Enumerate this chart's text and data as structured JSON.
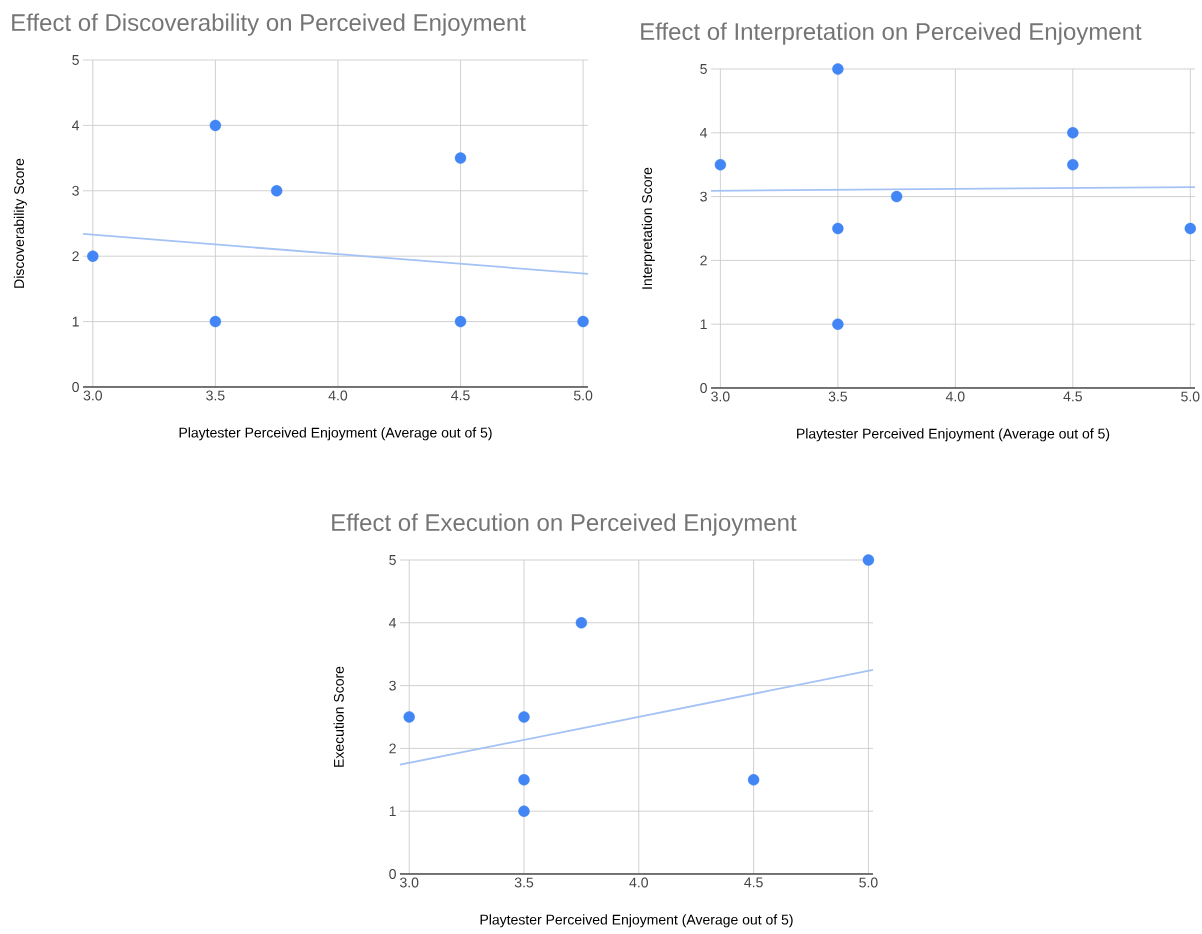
{
  "chart_data": [
    {
      "type": "scatter",
      "title": "Effect of Discoverability on Perceived Enjoyment",
      "xlabel": "Playtester Perceived Enjoyment (Average out of 5)",
      "ylabel": "Discoverability Score",
      "xlim": [
        2.96,
        5.02
      ],
      "ylim": [
        0,
        5
      ],
      "xticks": [
        {
          "value": 3,
          "label": "3.0"
        },
        {
          "value": 3.5,
          "label": "3.5"
        },
        {
          "value": 4,
          "label": "4.0"
        },
        {
          "value": 4.5,
          "label": "4.5"
        },
        {
          "value": 5,
          "label": "5.0"
        }
      ],
      "yticks": [
        0,
        1,
        2,
        3,
        4,
        5
      ],
      "grid": true,
      "series": [
        {
          "color": "#4285f4",
          "marker": "circle",
          "x": [
            3.0,
            3.5,
            3.5,
            3.75,
            4.5,
            4.5,
            5.0
          ],
          "values": [
            2,
            4,
            1,
            3,
            3.5,
            1,
            1
          ]
        },
        {
          "type": "line",
          "color": "#a4c2f4",
          "marker": "none",
          "x": [
            2.96,
            5.02
          ],
          "values": [
            2.34,
            1.73
          ]
        }
      ]
    },
    {
      "type": "scatter",
      "title": "Effect of Interpretation on Perceived Enjoyment",
      "xlabel": "Playtester Perceived Enjoyment (Average out of 5)",
      "ylabel": "Interpretation Score",
      "xlim": [
        2.96,
        5.02
      ],
      "ylim": [
        0,
        5
      ],
      "xticks": [
        {
          "value": 3,
          "label": "3.0"
        },
        {
          "value": 3.5,
          "label": "3.5"
        },
        {
          "value": 4,
          "label": "4.0"
        },
        {
          "value": 4.5,
          "label": "4.5"
        },
        {
          "value": 5,
          "label": "5.0"
        }
      ],
      "yticks": [
        0,
        1,
        2,
        3,
        4,
        5
      ],
      "grid": true,
      "series": [
        {
          "color": "#4285f4",
          "marker": "circle",
          "x": [
            3.0,
            3.5,
            3.5,
            3.5,
            3.75,
            4.5,
            4.5,
            5.0
          ],
          "values": [
            3.5,
            5,
            2.5,
            1,
            3,
            4,
            3.5,
            2.5
          ]
        },
        {
          "type": "line",
          "color": "#a4c2f4",
          "marker": "none",
          "x": [
            2.96,
            5.02
          ],
          "values": [
            3.09,
            3.15
          ]
        }
      ]
    },
    {
      "type": "scatter",
      "title": "Effect of Execution on Perceived Enjoyment",
      "xlabel": "Playtester Perceived Enjoyment (Average out of 5)",
      "ylabel": "Execution Score",
      "xlim": [
        2.96,
        5.02
      ],
      "ylim": [
        0,
        5
      ],
      "xticks": [
        {
          "value": 3,
          "label": "3.0"
        },
        {
          "value": 3.5,
          "label": "3.5"
        },
        {
          "value": 4,
          "label": "4.0"
        },
        {
          "value": 4.5,
          "label": "4.5"
        },
        {
          "value": 5,
          "label": "5.0"
        }
      ],
      "yticks": [
        0,
        1,
        2,
        3,
        4,
        5
      ],
      "grid": true,
      "series": [
        {
          "color": "#4285f4",
          "marker": "circle",
          "x": [
            3.0,
            3.5,
            3.5,
            3.5,
            3.75,
            4.5,
            5.0
          ],
          "values": [
            2.5,
            2.5,
            1.5,
            1,
            4,
            1.5,
            5
          ]
        },
        {
          "type": "line",
          "color": "#a4c2f4",
          "marker": "none",
          "x": [
            2.96,
            5.02
          ],
          "values": [
            1.74,
            3.25
          ]
        }
      ]
    }
  ]
}
